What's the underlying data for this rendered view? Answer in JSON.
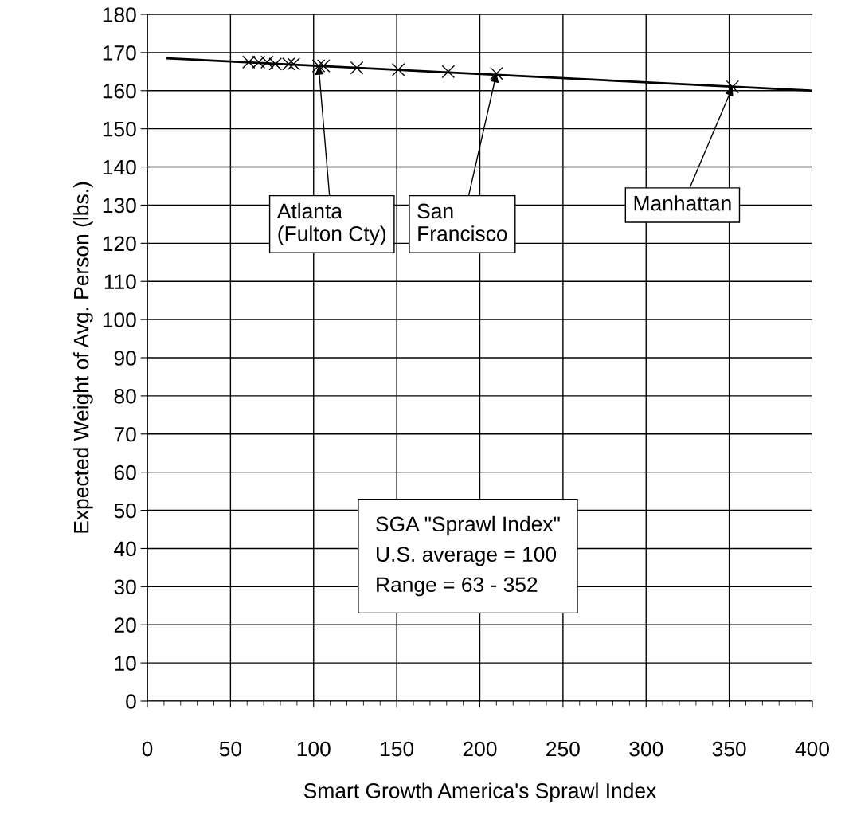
{
  "chart_data": {
    "type": "scatter",
    "xlabel": "Smart Growth America's Sprawl Index",
    "ylabel": "Expected Weight of Avg. Person (lbs.)",
    "xlim": [
      0,
      400
    ],
    "xticks": [
      0,
      50,
      100,
      150,
      200,
      250,
      300,
      350,
      400
    ],
    "ylim": [
      0,
      180
    ],
    "yticks": [
      0,
      10,
      20,
      30,
      40,
      50,
      60,
      70,
      80,
      90,
      100,
      110,
      120,
      130,
      140,
      150,
      160,
      170,
      180
    ],
    "grid": true,
    "marker": "cross",
    "series": [
      {
        "type": "line",
        "color": "#000000",
        "x": [
          12,
          400
        ],
        "values": [
          168.5,
          160
        ],
        "marker": "none"
      },
      {
        "color": "#000000",
        "x": [
          61,
          67,
          72,
          77,
          85,
          88,
          103,
          106,
          126,
          151,
          181,
          210,
          352
        ],
        "values": [
          167.5,
          167.5,
          167.5,
          167,
          167,
          167,
          166.5,
          166.5,
          166,
          165.5,
          165,
          164.5,
          161
        ]
      }
    ],
    "annotations": [
      {
        "text": "Atlanta\n(Fulton Cty)",
        "x": 103,
        "y": 166.5
      },
      {
        "text": "San\nFrancisco",
        "x": 210,
        "y": 164.5
      },
      {
        "text": "Manhattan",
        "x": 352,
        "y": 161
      },
      "SGA \"Sprawl Index\"\nU.S. average = 100\nRange = 63 - 352"
    ]
  }
}
